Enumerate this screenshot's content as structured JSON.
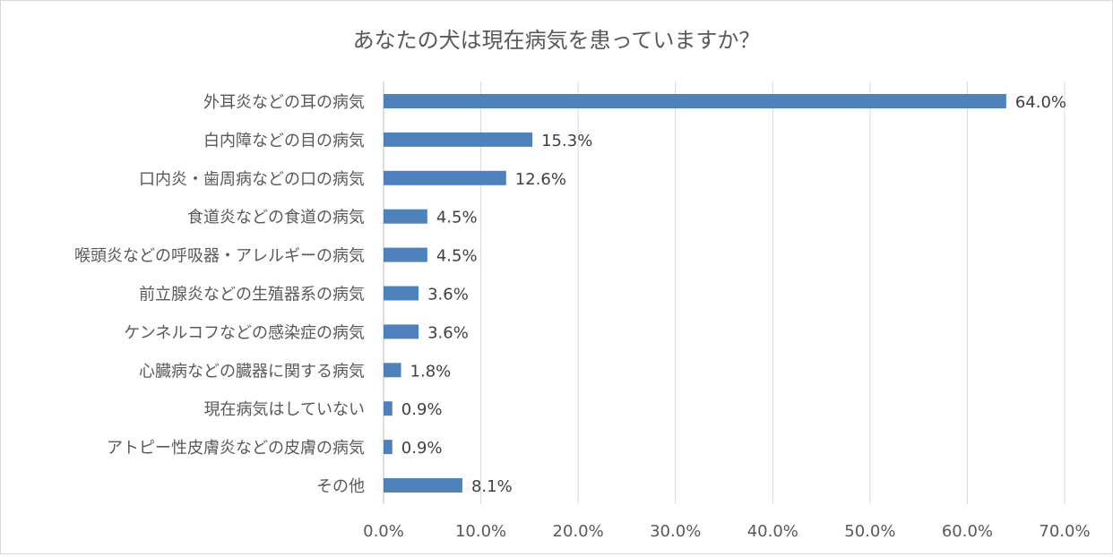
{
  "chart_data": {
    "type": "bar",
    "orientation": "horizontal",
    "title": "あなたの犬は現在病気を患っていますか？",
    "categories": [
      "外耳炎などの耳の病気",
      "白内障などの目の病気",
      "口内炎・歯周病などの口の病気",
      "食道炎などの食道の病気",
      "喉頭炎などの呼吸器・アレルギーの病気",
      "前立腺炎などの生殖器系の病気",
      "ケンネルコフなどの感染症の病気",
      "心臓病などの臓器に関する病気",
      "現在病気はしていない",
      "アトピー性皮膚炎などの皮膚の病気",
      "その他"
    ],
    "values": [
      64.0,
      15.3,
      12.6,
      4.5,
      4.5,
      3.6,
      3.6,
      1.8,
      0.9,
      0.9,
      8.1
    ],
    "data_labels": [
      "64.0%",
      "15.3%",
      "12.6%",
      "4.5%",
      "4.5%",
      "3.6%",
      "3.6%",
      "1.8%",
      "0.9%",
      "0.9%",
      "8.1%"
    ],
    "x_ticks": [
      "0.0%",
      "10.0%",
      "20.0%",
      "30.0%",
      "40.0%",
      "50.0%",
      "60.0%",
      "70.0%"
    ],
    "xlim": [
      0,
      70
    ],
    "grid": true,
    "bar_color": "#4f81bd",
    "grid_color": "#d9d9d9",
    "text_color": "#595959"
  }
}
